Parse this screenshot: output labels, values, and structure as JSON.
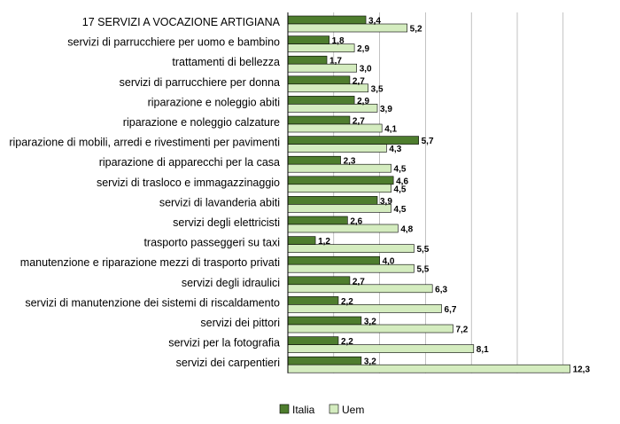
{
  "chart_data": {
    "type": "bar",
    "orientation": "horizontal",
    "categories": [
      "17 SERVIZI A VOCAZIONE ARTIGIANA",
      "servizi di parrucchiere per uomo e bambino",
      "trattamenti di bellezza",
      "servizi di parrucchiere per donna",
      "riparazione e noleggio abiti",
      "riparazione e noleggio calzature",
      "riparazione di mobili, arredi e rivestimenti per pavimenti",
      "riparazione di apparecchi per la casa",
      "servizi di trasloco e immagazzinaggio",
      "servizi di lavanderia abiti",
      "servizi degli elettricisti",
      "trasporto passeggeri su taxi",
      "manutenzione e riparazione mezzi di trasporto privati",
      "servizi degli idraulici",
      "servizi di manutenzione dei sistemi di riscaldamento",
      "servizi dei pittori",
      "servizi per la fotografia",
      "servizi dei carpentieri"
    ],
    "series": [
      {
        "name": "Italia",
        "color": "#4e7d2e",
        "values": [
          3.4,
          1.8,
          1.7,
          2.7,
          2.9,
          2.7,
          5.7,
          2.3,
          4.6,
          3.9,
          2.6,
          1.2,
          4.0,
          2.7,
          2.2,
          3.2,
          2.2,
          3.2
        ],
        "labels": [
          "3,4",
          "1,8",
          "1,7",
          "2,7",
          "2,9",
          "2,7",
          "5,7",
          "2,3",
          "4,6",
          "3,9",
          "2,6",
          "1,2",
          "4,0",
          "2,7",
          "2,2",
          "3,2",
          "2,2",
          "3,2"
        ]
      },
      {
        "name": "Uem",
        "color": "#d4ecbf",
        "values": [
          5.2,
          2.9,
          3.0,
          3.5,
          3.9,
          4.1,
          4.3,
          4.5,
          4.5,
          4.5,
          4.8,
          5.5,
          5.5,
          6.3,
          6.7,
          7.2,
          8.1,
          12.3
        ],
        "labels": [
          "5,2",
          "2,9",
          "3,0",
          "3,5",
          "3,9",
          "4,1",
          "4,3",
          "4,5",
          "4,5",
          "4,5",
          "4,8",
          "5,5",
          "5,5",
          "6,3",
          "6,7",
          "7,2",
          "8,1",
          "12,3"
        ]
      }
    ],
    "xlim": [
      0,
      12.5
    ],
    "grid": true,
    "legend": "bottom"
  }
}
